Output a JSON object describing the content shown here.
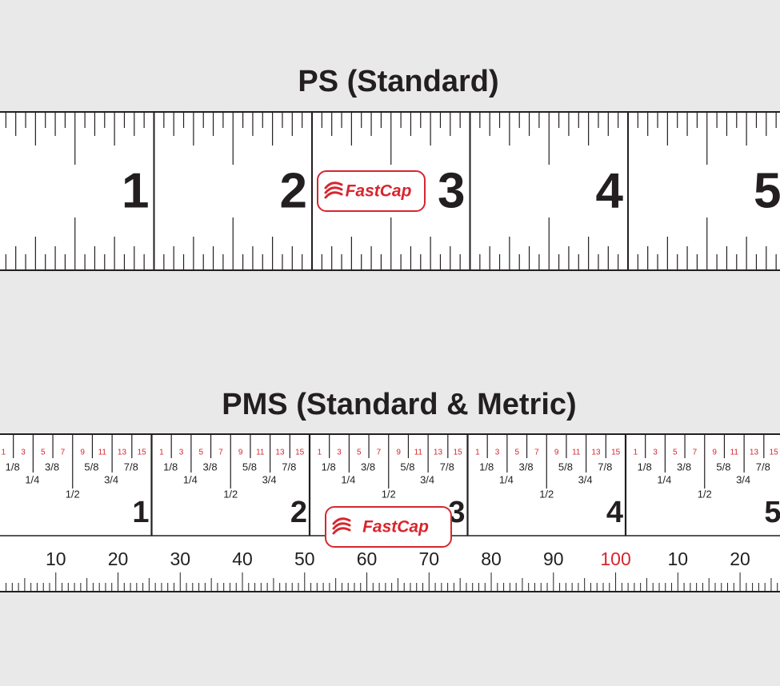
{
  "rulers": [
    {
      "title": "PS  (Standard)",
      "inch_labels": [
        "1",
        "2",
        "3",
        "4",
        "5"
      ],
      "logo": "FastCap"
    },
    {
      "title": "PMS  (Standard & Metric)",
      "inch_labels": [
        "1",
        "2",
        "3",
        "4",
        "5"
      ],
      "sixteenth_labels": [
        "1",
        "3",
        "5",
        "7",
        "9",
        "11",
        "13",
        "15"
      ],
      "fraction_labels": [
        "1/8",
        "1/4",
        "3/8",
        "1/2",
        "5/8",
        "3/4",
        "7/8"
      ],
      "metric_labels": [
        "10",
        "20",
        "30",
        "40",
        "50",
        "60",
        "70",
        "80",
        "90",
        "100",
        "10",
        "20"
      ],
      "logo": "FastCap"
    }
  ],
  "accent_color": "#d7262e"
}
